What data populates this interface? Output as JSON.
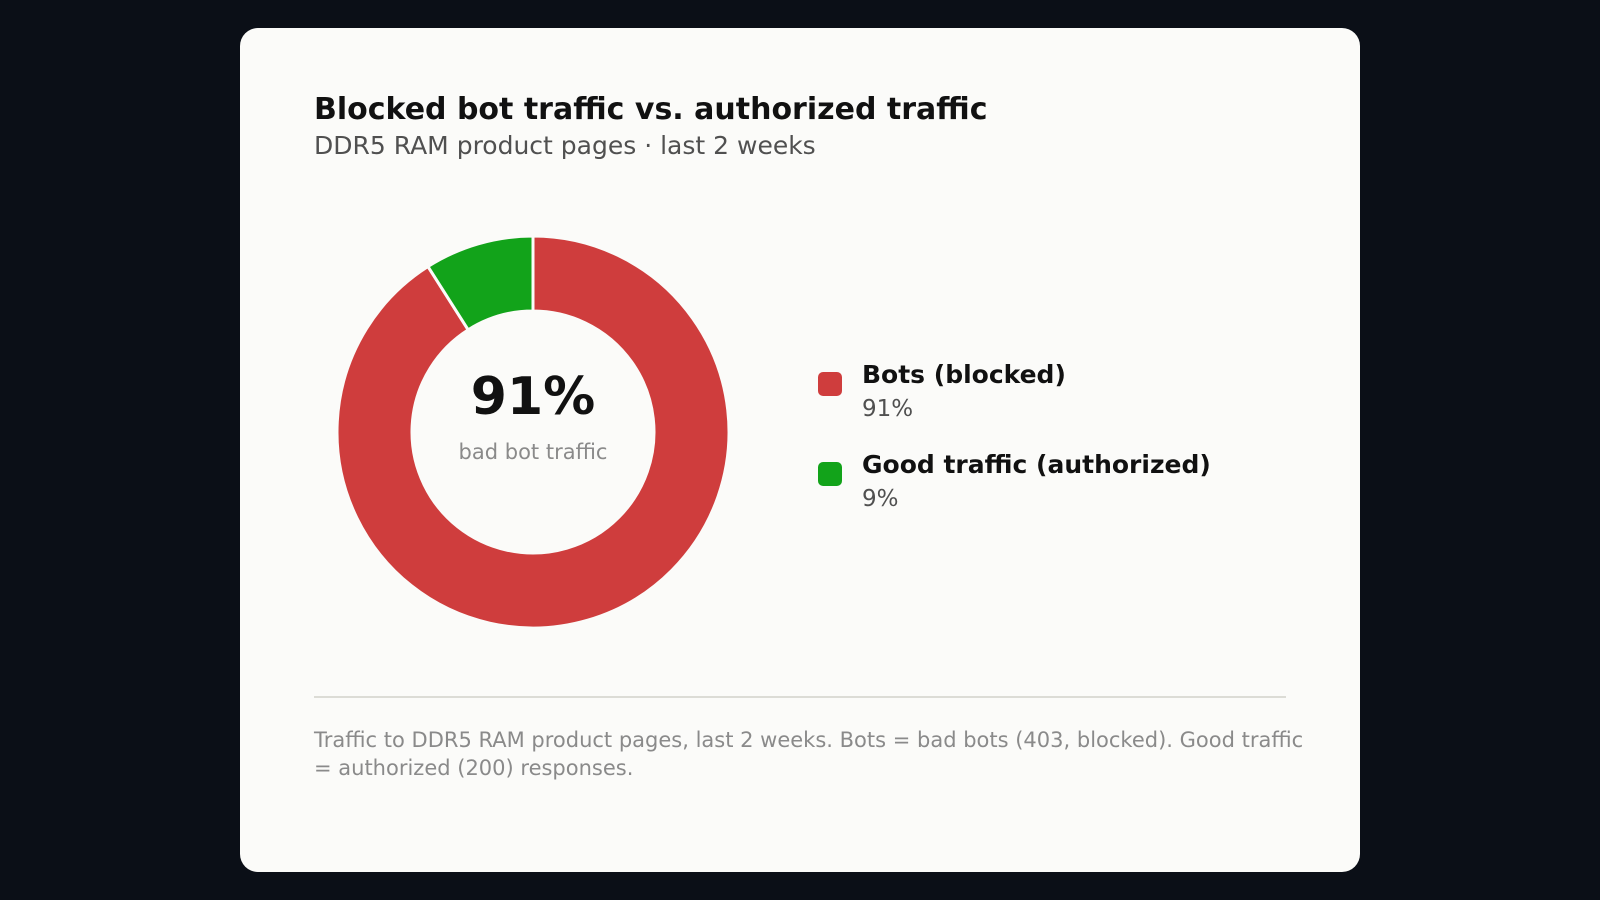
{
  "card": {
    "title": "Blocked bot traffic vs. authorized traffic",
    "subtitle": "DDR5 RAM product pages · last 2 weeks",
    "center_value": "91%",
    "center_caption": "bad bot traffic",
    "legend": [
      {
        "label": "Bots (blocked)",
        "value": "91%",
        "color": "#cf3d3d"
      },
      {
        "label": "Good traffic (authorized)",
        "value": "9%",
        "color": "#12a31a"
      }
    ],
    "footnote": "Traffic to DDR5 RAM product pages, last 2 weeks. Bots = bad bots (403, blocked). Good traffic = authorized (200) responses."
  },
  "chart_data": {
    "type": "pie",
    "style": "donut",
    "title": "Blocked bot traffic vs. authorized traffic",
    "subtitle": "DDR5 RAM product pages · last 2 weeks",
    "categories": [
      "Bots (blocked)",
      "Good traffic (authorized)"
    ],
    "values": [
      91,
      9
    ],
    "unit": "%",
    "colors": [
      "#cf3d3d",
      "#12a31a"
    ],
    "center_label": "91%",
    "center_caption": "bad bot traffic",
    "legend_position": "right"
  }
}
